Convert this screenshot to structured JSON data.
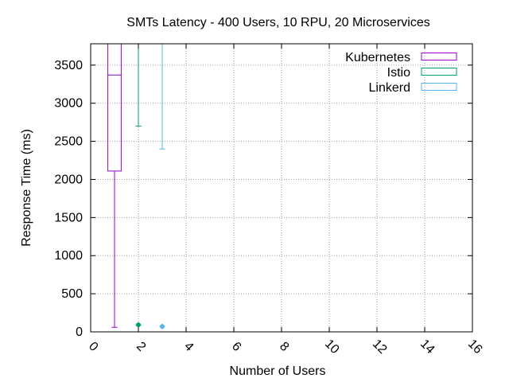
{
  "chart_data": {
    "type": "box",
    "title": "SMTs Latency - 400 Users, 10 RPU, 20 Microservices",
    "xlabel": "Number of Users",
    "ylabel": "Response Time (ms)",
    "xlim": [
      0,
      16
    ],
    "ylim": [
      0,
      3780
    ],
    "x_ticks": [
      0,
      2,
      4,
      6,
      8,
      10,
      12,
      14,
      16
    ],
    "y_ticks": [
      0,
      500,
      1000,
      1500,
      2000,
      2500,
      3000,
      3500
    ],
    "grid": true,
    "legend_position": "top-right",
    "series": [
      {
        "name": "Kubernetes",
        "color": "#9400d3",
        "x": 1,
        "whisker_low": 60,
        "q1": 2110,
        "median": 3370,
        "q3": 3780,
        "whisker_high": 3780,
        "outliers": []
      },
      {
        "name": "Istio",
        "color": "#009e73",
        "x": 2,
        "whisker_low": 2700,
        "q1": 3780,
        "median": 3780,
        "q3": 3780,
        "whisker_high": 3780,
        "outliers": [
          92
        ]
      },
      {
        "name": "Linkerd",
        "color": "#56b4e9",
        "x": 3,
        "whisker_low": 2400,
        "q1": 3780,
        "median": 3780,
        "q3": 3780,
        "whisker_high": 3780,
        "outliers": [
          70
        ]
      }
    ]
  }
}
